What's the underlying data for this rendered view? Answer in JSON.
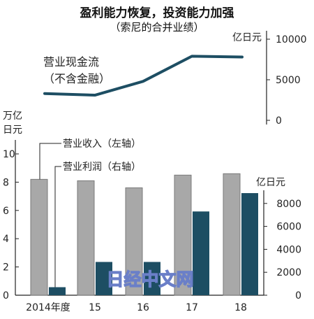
{
  "chart_data": [
    {
      "type": "line",
      "title": "盈利能力恢复，投资能力加强",
      "subtitle": "（索尼的合并业绩）",
      "series": [
        {
          "name": "营业现金流（不含金融）",
          "values": [
            3300,
            3100,
            4800,
            7900,
            7800
          ]
        }
      ],
      "categories": [
        "2014年度",
        "15",
        "16",
        "17",
        "18"
      ],
      "y_unit": "亿日元",
      "y_axis_side": "right",
      "yticks": [
        0,
        5000,
        10000
      ],
      "yticklabels": [
        "0",
        "5000",
        "10000"
      ],
      "ylim": [
        0,
        10000
      ],
      "grid": false,
      "color": "#1d4e63",
      "series_label_lines": [
        "营业现金流",
        "（不含金融）"
      ]
    },
    {
      "type": "bar",
      "categories": [
        "2014年度",
        "15",
        "16",
        "17",
        "18"
      ],
      "series": [
        {
          "name": "营业收入（左轴）",
          "axis": "left",
          "values": [
            8.2,
            8.1,
            7.6,
            8.5,
            8.6
          ],
          "color": "#a8a8a8"
        },
        {
          "name": "营业利润（右轴）",
          "axis": "right",
          "values": [
            700,
            2900,
            2900,
            7300,
            8900
          ],
          "color": "#1d4e63"
        }
      ],
      "left_axis": {
        "unit_lines": [
          "万亿",
          "日元"
        ],
        "ylim": [
          0,
          10
        ],
        "yticks": [
          0,
          2,
          4,
          6,
          8,
          10
        ],
        "yticklabels": [
          "0",
          "2",
          "4",
          "6",
          "8",
          "10"
        ]
      },
      "right_axis": {
        "unit": "亿日元",
        "ylim": [
          0,
          10000
        ],
        "yticks": [
          0,
          2000,
          4000,
          6000,
          8000
        ],
        "yticklabels": [
          "0",
          "2000",
          "4000",
          "6000",
          "8000"
        ]
      },
      "grid": false,
      "legend_placement": "top-left (callout labels)"
    }
  ],
  "watermark": "日经中文网"
}
